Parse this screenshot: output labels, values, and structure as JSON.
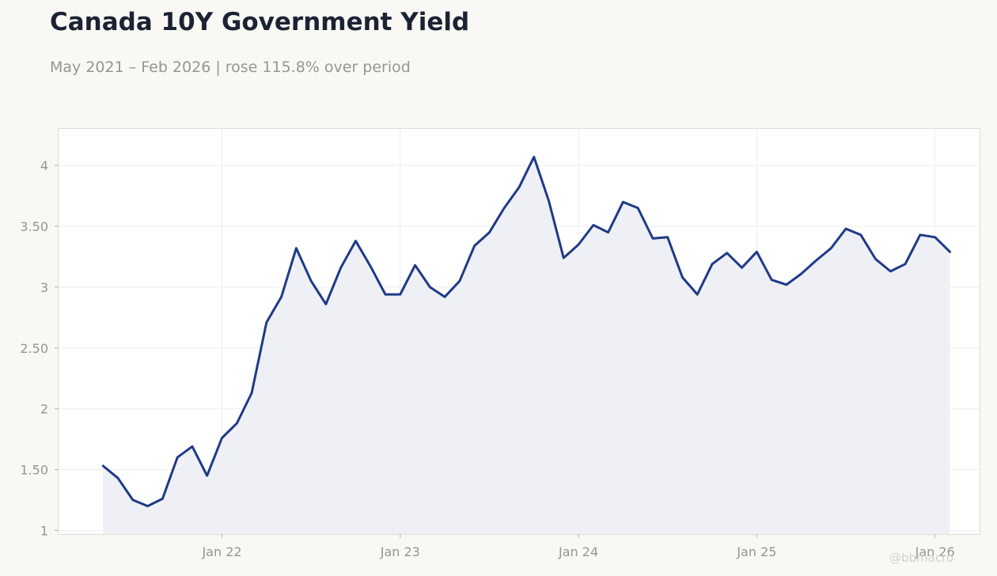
{
  "title": "Canada 10Y Government Yield",
  "subtitle": "May 2021 – Feb 2026 | rose 115.8% over period",
  "watermark": "@bbmacro",
  "colors": {
    "background": "#f9f8f5",
    "plot_background": "#ffffff",
    "line": "#1f3a87",
    "fill": "#eceef4",
    "title": "#1b2333",
    "muted_text": "#979591"
  },
  "chart_data": {
    "type": "area",
    "x": [
      "2021-05",
      "2021-06",
      "2021-07",
      "2021-08",
      "2021-09",
      "2021-10",
      "2021-11",
      "2021-12",
      "2022-01",
      "2022-02",
      "2022-03",
      "2022-04",
      "2022-05",
      "2022-06",
      "2022-07",
      "2022-08",
      "2022-09",
      "2022-10",
      "2022-11",
      "2022-12",
      "2023-01",
      "2023-02",
      "2023-03",
      "2023-04",
      "2023-05",
      "2023-06",
      "2023-07",
      "2023-08",
      "2023-09",
      "2023-10",
      "2023-11",
      "2023-12",
      "2024-01",
      "2024-02",
      "2024-03",
      "2024-04",
      "2024-05",
      "2024-06",
      "2024-07",
      "2024-08",
      "2024-09",
      "2024-10",
      "2024-11",
      "2024-12",
      "2025-01",
      "2025-02",
      "2025-03",
      "2025-04",
      "2025-05",
      "2025-06",
      "2025-07",
      "2025-08",
      "2025-09",
      "2025-10",
      "2025-11",
      "2025-12",
      "2026-01",
      "2026-02"
    ],
    "series": [
      {
        "values": [
          1.53,
          1.43,
          1.25,
          1.2,
          1.26,
          1.6,
          1.69,
          1.45,
          1.76,
          1.88,
          2.13,
          2.71,
          2.92,
          3.32,
          3.05,
          2.86,
          3.16,
          3.38,
          3.17,
          2.94,
          2.94,
          3.18,
          3.0,
          2.92,
          3.05,
          3.34,
          3.45,
          3.65,
          3.82,
          4.07,
          3.71,
          3.24,
          3.35,
          3.51,
          3.45,
          3.7,
          3.65,
          3.4,
          3.41,
          3.08,
          2.94,
          3.19,
          3.28,
          3.16,
          3.29,
          3.06,
          3.02,
          3.11,
          3.22,
          3.32,
          3.48,
          3.43,
          3.23,
          3.13,
          3.19,
          3.43,
          3.41,
          3.29
        ]
      }
    ],
    "xticks": [
      {
        "x": "2022-01",
        "label": "Jan 22"
      },
      {
        "x": "2023-01",
        "label": "Jan 23"
      },
      {
        "x": "2024-01",
        "label": "Jan 24"
      },
      {
        "x": "2025-01",
        "label": "Jan 25"
      },
      {
        "x": "2026-01",
        "label": "Jan 26"
      }
    ],
    "yticks": [
      {
        "value": 1,
        "label": "1"
      },
      {
        "value": 1.5,
        "label": "1.50"
      },
      {
        "value": 2,
        "label": "2"
      },
      {
        "value": 2.5,
        "label": "2.50"
      },
      {
        "value": 3,
        "label": "3"
      },
      {
        "value": 3.5,
        "label": "3.50"
      },
      {
        "value": 4,
        "label": "4"
      }
    ],
    "ylim": [
      0.97,
      4.3
    ],
    "xlim": [
      "2021-02",
      "2026-04"
    ],
    "grid": true,
    "legend": false
  }
}
